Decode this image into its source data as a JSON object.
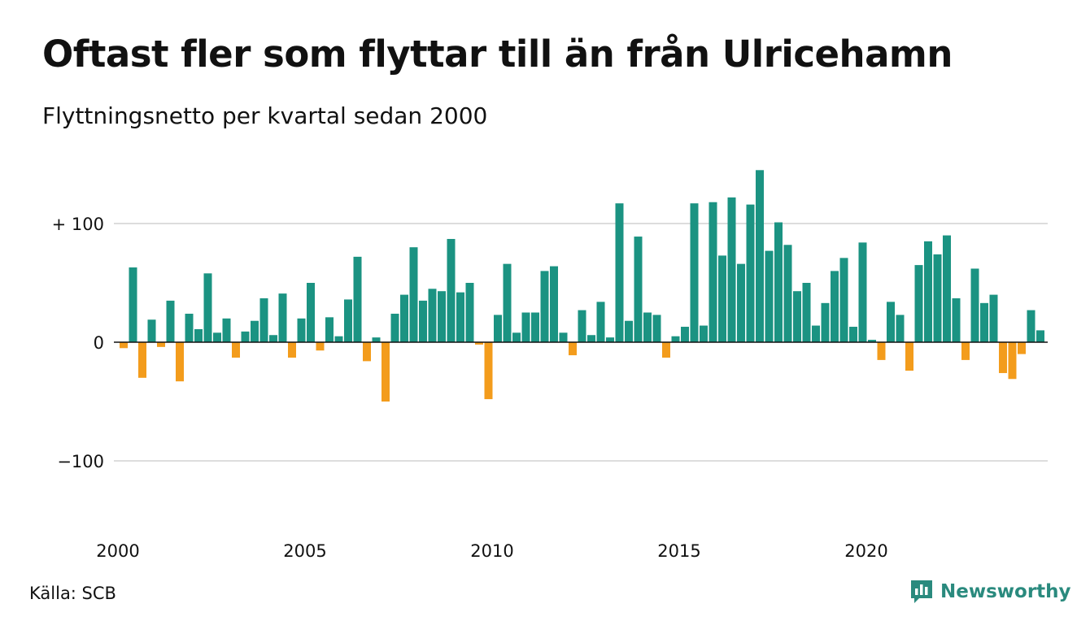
{
  "title": "Oftast fler som flyttar till än från Ulricehamn",
  "subtitle": "Flyttningsnetto per kvartal sedan 2000",
  "source": "Källa: SCB",
  "brand": {
    "name": "Newsworthy",
    "icon": "bar-chart-speech-icon"
  },
  "colors": {
    "positive": "#1b9382",
    "negative": "#f39c1c",
    "grid": "#dddddd",
    "brand": "#2a8a7e"
  },
  "chart_data": {
    "type": "bar",
    "title": "Oftast fler som flyttar till än från Ulricehamn",
    "subtitle": "Flyttningsnetto per kvartal sedan 2000",
    "start_year": 2000,
    "periods_per_year": 4,
    "ylim": [
      -150,
      150
    ],
    "yticks": [
      {
        "value": 100,
        "label": "+ 100"
      },
      {
        "value": 0,
        "label": "0"
      },
      {
        "value": -100,
        "label": "−100"
      }
    ],
    "xticks": [
      "2000",
      "2005",
      "2010",
      "2015",
      "2020"
    ],
    "grid": true,
    "values": [
      -5,
      63,
      -30,
      19,
      -4,
      35,
      -33,
      24,
      11,
      58,
      8,
      20,
      -13,
      9,
      18,
      37,
      6,
      41,
      -13,
      20,
      50,
      -7,
      21,
      5,
      36,
      72,
      -16,
      4,
      -50,
      24,
      40,
      80,
      35,
      45,
      43,
      87,
      42,
      50,
      -2,
      -48,
      23,
      66,
      8,
      25,
      25,
      60,
      64,
      8,
      -11,
      27,
      6,
      34,
      4,
      117,
      18,
      89,
      25,
      23,
      -13,
      5,
      13,
      117,
      14,
      118,
      73,
      122,
      66,
      116,
      145,
      77,
      101,
      82,
      43,
      50,
      14,
      33,
      60,
      71,
      13,
      84,
      2,
      -15,
      34,
      23,
      -24,
      65,
      85,
      74,
      90,
      37,
      -15,
      62,
      33,
      40,
      -26,
      -31,
      -10,
      27,
      10
    ]
  }
}
